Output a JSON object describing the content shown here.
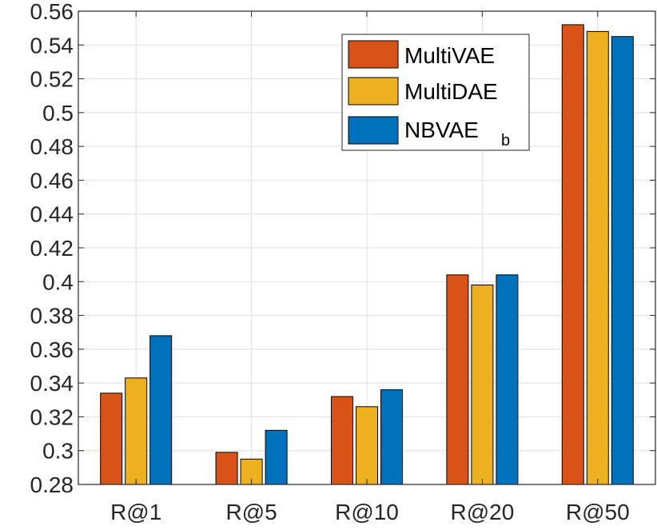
{
  "chart_data": {
    "type": "bar",
    "title": "",
    "xlabel": "",
    "ylabel": "",
    "categories": [
      "R@1",
      "R@5",
      "R@10",
      "R@20",
      "R@50"
    ],
    "ylim": [
      0.28,
      0.56
    ],
    "yticks": [
      0.28,
      0.3,
      0.32,
      0.34,
      0.36,
      0.38,
      0.4,
      0.42,
      0.44,
      0.46,
      0.48,
      0.5,
      0.52,
      0.54,
      0.56
    ],
    "ytick_labels": [
      "0.28",
      "0.3",
      "0.32",
      "0.34",
      "0.36",
      "0.38",
      "0.4",
      "0.42",
      "0.44",
      "0.46",
      "0.48",
      "0.5",
      "0.52",
      "0.54",
      "0.56"
    ],
    "grid": true,
    "legend_position": "top-right",
    "series": [
      {
        "name": "MultiVAE",
        "name_sub": "",
        "color": "#D95319",
        "values": [
          0.334,
          0.299,
          0.332,
          0.404,
          0.552
        ]
      },
      {
        "name": "MultiDAE",
        "name_sub": "",
        "color": "#EDB120",
        "values": [
          0.343,
          0.295,
          0.326,
          0.398,
          0.548
        ]
      },
      {
        "name": "NBVAE",
        "name_sub": "b",
        "color": "#0072BD",
        "values": [
          0.368,
          0.312,
          0.336,
          0.404,
          0.545
        ]
      }
    ]
  }
}
